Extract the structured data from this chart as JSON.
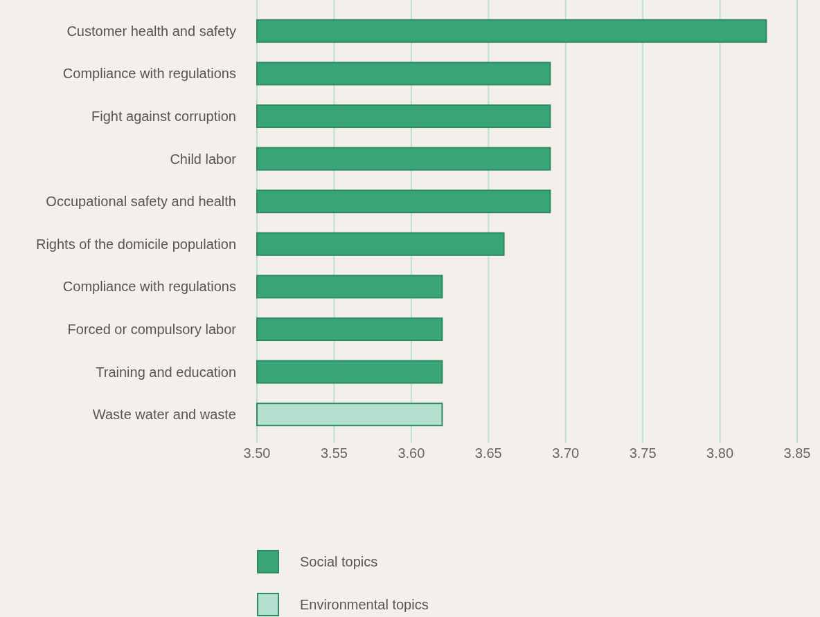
{
  "chart_data": {
    "type": "bar",
    "orientation": "horizontal",
    "categories": [
      "Customer health and safety",
      "Compliance with regulations",
      "Fight against corruption",
      "Child labor",
      "Occupational safety and health",
      "Rights of the domicile population",
      "Compliance with regulations",
      "Forced or compulsory labor",
      "Training and education",
      "Waste water and waste"
    ],
    "series": [
      {
        "name": "Social topics",
        "color": "#38a477",
        "values": [
          3.83,
          3.69,
          3.69,
          3.69,
          3.69,
          3.66,
          3.62,
          3.62,
          3.62,
          null
        ]
      },
      {
        "name": "Environmental topics",
        "color": "#b3e0cf",
        "values": [
          null,
          null,
          null,
          null,
          null,
          null,
          null,
          null,
          null,
          3.62
        ]
      }
    ],
    "xlim": [
      3.5,
      3.85
    ],
    "xticks": [
      {
        "value": 3.5,
        "label": "3.50"
      },
      {
        "value": 3.55,
        "label": "3.55"
      },
      {
        "value": 3.6,
        "label": "3.60"
      },
      {
        "value": 3.65,
        "label": "3.65"
      },
      {
        "value": 3.7,
        "label": "3.70"
      },
      {
        "value": 3.75,
        "label": "3.75"
      },
      {
        "value": 3.8,
        "label": "3.80"
      },
      {
        "value": 3.85,
        "label": "3.85"
      }
    ],
    "grid": "x",
    "legend": "bottom"
  }
}
